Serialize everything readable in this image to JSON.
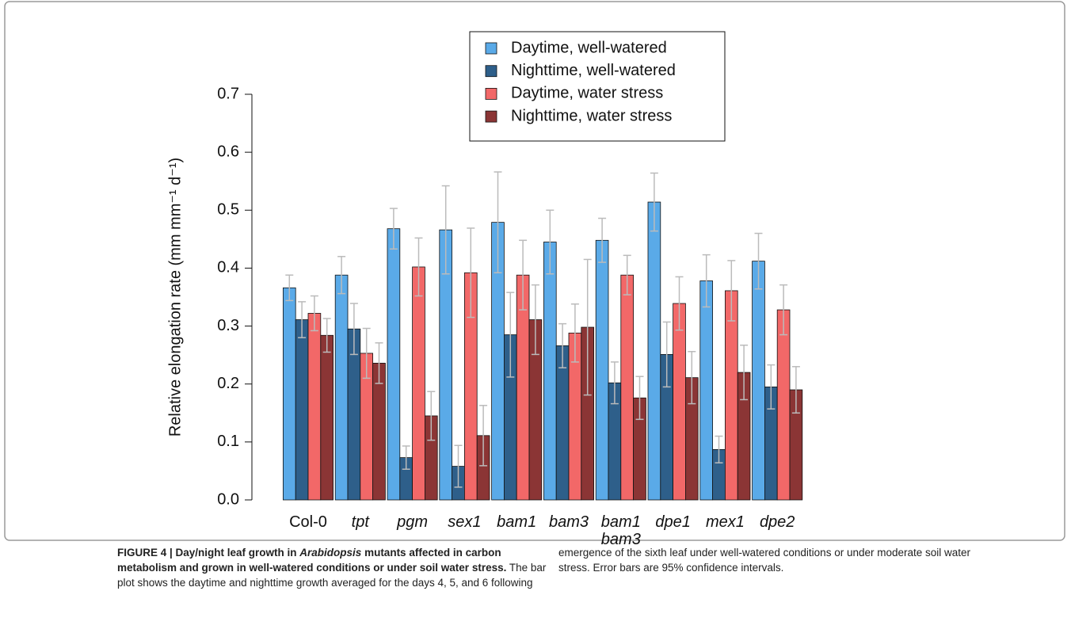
{
  "chart_data": {
    "type": "bar",
    "ylabel": "Relative elongation rate (mm mm⁻¹ d⁻¹)",
    "categories": [
      "Col-0",
      "tpt",
      "pgm",
      "sex1",
      "bam1",
      "bam3",
      "bam1\nbam3",
      "dpe1",
      "mex1",
      "dpe2"
    ],
    "category_style": [
      "normal",
      "italic",
      "italic",
      "italic",
      "italic",
      "italic",
      "italic",
      "italic",
      "italic",
      "italic"
    ],
    "ylim": [
      0,
      0.7
    ],
    "yticks": [
      {
        "value": 0,
        "label": "0.0"
      },
      0.1,
      0.2,
      0.3,
      0.4,
      0.5,
      0.6,
      0.7
    ],
    "error_color": "#bbbbbb",
    "legend_position": "top",
    "series": [
      {
        "name": "Daytime, well-watered",
        "color": "#5aaae8",
        "values": [
          0.366,
          0.388,
          0.468,
          0.466,
          0.479,
          0.445,
          0.448,
          0.514,
          0.378,
          0.412
        ],
        "errors": [
          0.022,
          0.032,
          0.035,
          0.076,
          0.087,
          0.055,
          0.038,
          0.05,
          0.045,
          0.048
        ]
      },
      {
        "name": "Nighttime, well-watered",
        "color": "#2e5f8a",
        "values": [
          0.311,
          0.295,
          0.073,
          0.058,
          0.285,
          0.266,
          0.202,
          0.251,
          0.087,
          0.195
        ],
        "errors": [
          0.031,
          0.044,
          0.02,
          0.036,
          0.073,
          0.038,
          0.036,
          0.056,
          0.023,
          0.038
        ]
      },
      {
        "name": "Daytime, water stress",
        "color": "#f26868",
        "values": [
          0.322,
          0.253,
          0.402,
          0.392,
          0.388,
          0.288,
          0.388,
          0.339,
          0.361,
          0.328
        ],
        "errors": [
          0.03,
          0.043,
          0.05,
          0.077,
          0.06,
          0.05,
          0.034,
          0.046,
          0.052,
          0.043
        ]
      },
      {
        "name": "Nighttime, water stress",
        "color": "#8b3535",
        "values": [
          0.284,
          0.236,
          0.145,
          0.111,
          0.311,
          0.298,
          0.176,
          0.211,
          0.22,
          0.19
        ],
        "errors": [
          0.029,
          0.035,
          0.042,
          0.052,
          0.06,
          0.117,
          0.037,
          0.045,
          0.047,
          0.04
        ]
      }
    ]
  },
  "caption": [
    {
      "text": "FIGURE 4 | Day/night leaf growth in ",
      "style": "bold"
    },
    {
      "text": "Arabidopsis",
      "style": "bold-italic"
    },
    {
      "text": " mutants affected in carbon metabolism and grown in well-watered conditions or under soil water stress.",
      "style": "bold"
    },
    {
      "text": " The bar plot shows the daytime and nighttime growth averaged for the days 4, 5, and 6 following emergence of the sixth leaf under well-watered conditions or under moderate soil water stress. Error bars are 95% confidence intervals.",
      "style": "normal"
    }
  ]
}
